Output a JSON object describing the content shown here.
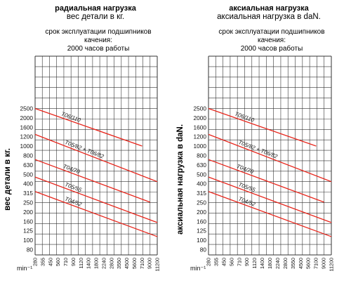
{
  "chart_data": [
    {
      "type": "line",
      "title": "радиальная нагрузка",
      "subtitle": "вес детали в кг.",
      "caption_lines": [
        "срок эксплуатации подшипников",
        "качения:",
        "2000 часов работы"
      ],
      "ylabel": "вес детали в кг.",
      "xlabel": "min⁻¹",
      "yscale": "log",
      "xscale": "log",
      "y_ticks": [
        "2500",
        "2000",
        "1600",
        "1200",
        "1000",
        "800",
        "630",
        "500",
        "400",
        "315",
        "250",
        "200",
        "160",
        "125",
        "100",
        "80"
      ],
      "x_ticks": [
        "280",
        "355",
        "450",
        "560",
        "710",
        "900",
        "1120",
        "1400",
        "1800",
        "2240",
        "2800",
        "3550",
        "4500",
        "5600",
        "7100",
        "9000",
        "11200"
      ],
      "grid": true,
      "line_color": "#e8261c",
      "series": [
        {
          "name": "T06/110",
          "x": [
            280,
            7100
          ],
          "y": [
            2500,
            1000
          ]
        },
        {
          "name": "T05/82 + T06/82",
          "x": [
            280,
            11200
          ],
          "y": [
            1330,
            420
          ]
        },
        {
          "name": "T04/70",
          "x": [
            280,
            9000
          ],
          "y": [
            720,
            255
          ]
        },
        {
          "name": "T05/55",
          "x": [
            280,
            11200
          ],
          "y": [
            470,
            155
          ]
        },
        {
          "name": "T04/52",
          "x": [
            280,
            11200
          ],
          "y": [
            330,
            110
          ]
        }
      ]
    },
    {
      "type": "line",
      "title": "аксиальная нагрузка",
      "subtitle": "аксиальная нагрузка в daN.",
      "caption_lines": [
        "срок эксплуатации подшипников",
        "качения:",
        "2000 часов работы"
      ],
      "ylabel": "аксиальная нагрузка в daN.",
      "xlabel": "min⁻¹",
      "yscale": "log",
      "xscale": "log",
      "y_ticks": [
        "2500",
        "2000",
        "1600",
        "1200",
        "1000",
        "800",
        "630",
        "500",
        "400",
        "315",
        "250",
        "200",
        "160",
        "125",
        "100",
        "80"
      ],
      "x_ticks": [
        "280",
        "355",
        "450",
        "560",
        "710",
        "900",
        "1120",
        "1400",
        "1800",
        "2240",
        "2800",
        "3550",
        "4500",
        "5600",
        "7100",
        "9000",
        "11200"
      ],
      "grid": true,
      "line_color": "#e8261c",
      "series": [
        {
          "name": "T06/110",
          "x": [
            280,
            7100
          ],
          "y": [
            2500,
            1000
          ]
        },
        {
          "name": "T05/82 + T06/82",
          "x": [
            280,
            11200
          ],
          "y": [
            1330,
            420
          ]
        },
        {
          "name": "T04/70",
          "x": [
            280,
            9000
          ],
          "y": [
            720,
            255
          ]
        },
        {
          "name": "T05/55",
          "x": [
            280,
            11200
          ],
          "y": [
            470,
            155
          ]
        },
        {
          "name": "T04/52",
          "x": [
            280,
            11200
          ],
          "y": [
            330,
            110
          ]
        }
      ]
    }
  ]
}
